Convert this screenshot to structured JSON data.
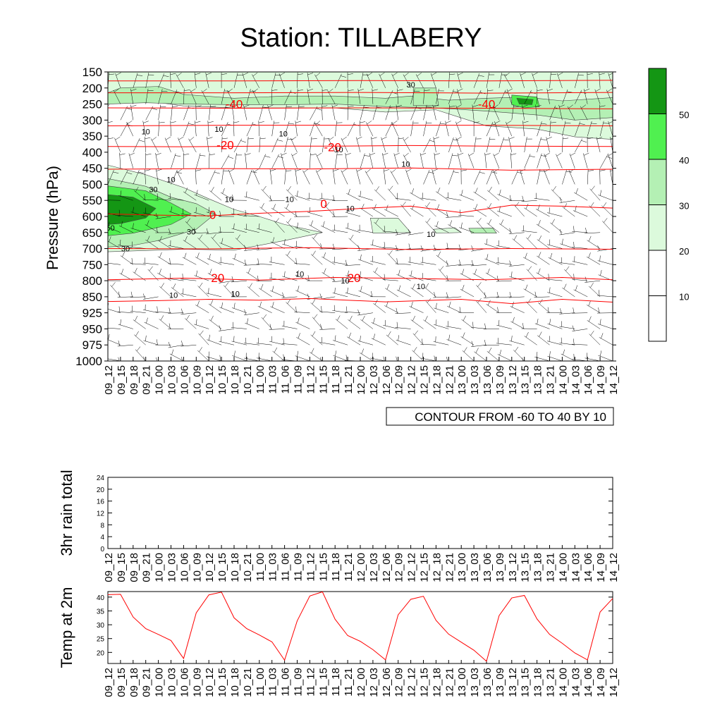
{
  "title": "Station: TILLABERY",
  "time_labels": [
    "09_12",
    "09_15",
    "09_18",
    "09_21",
    "10_00",
    "10_03",
    "10_06",
    "10_09",
    "10_12",
    "10_15",
    "10_18",
    "10_21",
    "11_00",
    "11_03",
    "11_06",
    "11_09",
    "11_12",
    "11_15",
    "11_18",
    "11_21",
    "12_00",
    "12_03",
    "12_06",
    "12_09",
    "12_12",
    "12_15",
    "12_18",
    "12_21",
    "13_00",
    "13_03",
    "13_06",
    "13_09",
    "13_12",
    "13_15",
    "13_18",
    "13_21",
    "14_00",
    "14_03",
    "14_06",
    "14_09",
    "14_12"
  ],
  "colors": {
    "temperature_contour": "#ff0000",
    "wind_barb": "#000000",
    "shade_20_30": "#dcfadc",
    "shade_30_40": "#b4f0b4",
    "shade_40_50": "#50f050",
    "shade_50_plus": "#149614"
  },
  "chart_data": [
    {
      "type": "heatmap",
      "name": "upper-air-cross-section",
      "ylabel": "Pressure (hPa)",
      "pressure_levels": [
        150,
        200,
        250,
        300,
        350,
        400,
        450,
        500,
        550,
        600,
        650,
        700,
        750,
        800,
        850,
        925,
        950,
        975,
        1000
      ],
      "x_ticks_from": "time_labels",
      "note": "CONTOUR FROM -60 TO 40 BY 10",
      "colorbar": {
        "levels": [
          10,
          20,
          30,
          40,
          50
        ]
      },
      "temperature_contour_labels": [
        {
          "text": "-40",
          "time_index": 10.0,
          "pressure": 250
        },
        {
          "text": "-40",
          "time_index": 30.0,
          "pressure": 250
        },
        {
          "text": "-20",
          "time_index": 9.3,
          "pressure": 377
        },
        {
          "text": "-20",
          "time_index": 17.8,
          "pressure": 384
        },
        {
          "text": "0",
          "time_index": 8.3,
          "pressure": 595
        },
        {
          "text": "0",
          "time_index": 17.1,
          "pressure": 560
        },
        {
          "text": "20",
          "time_index": 8.7,
          "pressure": 791
        },
        {
          "text": "20",
          "time_index": 19.5,
          "pressure": 791
        }
      ],
      "wind_speed_contour_labels": [
        {
          "text": "10",
          "time_index": 3.0,
          "pressure": 335
        },
        {
          "text": "10",
          "time_index": 8.8,
          "pressure": 328
        },
        {
          "text": "10",
          "time_index": 13.9,
          "pressure": 342
        },
        {
          "text": "10",
          "time_index": 18.3,
          "pressure": 391
        },
        {
          "text": "10",
          "time_index": 5.0,
          "pressure": 485
        },
        {
          "text": "10",
          "time_index": 23.6,
          "pressure": 437
        },
        {
          "text": "10",
          "time_index": 9.6,
          "pressure": 546
        },
        {
          "text": "10",
          "time_index": 14.4,
          "pressure": 546
        },
        {
          "text": "10",
          "time_index": 19.2,
          "pressure": 575
        },
        {
          "text": "10",
          "time_index": 25.6,
          "pressure": 655
        },
        {
          "text": "10",
          "time_index": 15.2,
          "pressure": 779
        },
        {
          "text": "10",
          "time_index": 18.8,
          "pressure": 800
        },
        {
          "text": "10",
          "time_index": 24.8,
          "pressure": 817
        },
        {
          "text": "10",
          "time_index": 5.2,
          "pressure": 845
        },
        {
          "text": "10",
          "time_index": 10.1,
          "pressure": 840
        },
        {
          "text": "30",
          "time_index": 3.6,
          "pressure": 515
        },
        {
          "text": "30",
          "time_index": 6.6,
          "pressure": 647
        },
        {
          "text": "30",
          "time_index": 1.4,
          "pressure": 700
        },
        {
          "text": "30",
          "time_index": 24.0,
          "pressure": 190
        },
        {
          "text": "50",
          "time_index": 0.2,
          "pressure": 635
        }
      ]
    },
    {
      "type": "line",
      "name": "3hr-rain-total",
      "ylabel": "3hr rain total",
      "ylim": [
        0,
        24
      ],
      "y_ticks": [
        0,
        4,
        8,
        12,
        16,
        20,
        24
      ],
      "x_ticks_from": "time_labels",
      "series": [
        {
          "values": [
            0,
            0,
            0,
            0,
            0,
            0,
            0,
            0,
            0,
            0,
            0,
            0,
            0,
            0,
            0,
            0,
            0,
            0,
            0,
            0,
            0,
            0,
            0,
            0,
            0,
            0,
            0,
            0,
            0,
            0,
            0,
            0,
            0,
            0,
            0,
            0,
            0,
            0,
            0,
            0,
            0
          ]
        }
      ]
    },
    {
      "type": "line",
      "name": "temp-at-2m",
      "ylabel": "Temp at 2m",
      "ylim": [
        16,
        42
      ],
      "y_ticks": [
        20,
        25,
        30,
        35,
        40
      ],
      "x_ticks_from": "time_labels",
      "series": [
        {
          "values": [
            40.9,
            41.0,
            32.8,
            28.6,
            26.5,
            24.3,
            17.8,
            34.3,
            40.8,
            41.8,
            32.5,
            28.6,
            26.3,
            23.8,
            17.2,
            31.4,
            40.4,
            41.9,
            32.0,
            26.1,
            24.0,
            21.0,
            17.3,
            33.6,
            39.2,
            40.3,
            31.6,
            26.6,
            23.7,
            20.8,
            16.8,
            33.3,
            39.7,
            40.6,
            32.1,
            26.5,
            23.3,
            19.8,
            17.3,
            34.6,
            39.5
          ]
        }
      ]
    }
  ]
}
